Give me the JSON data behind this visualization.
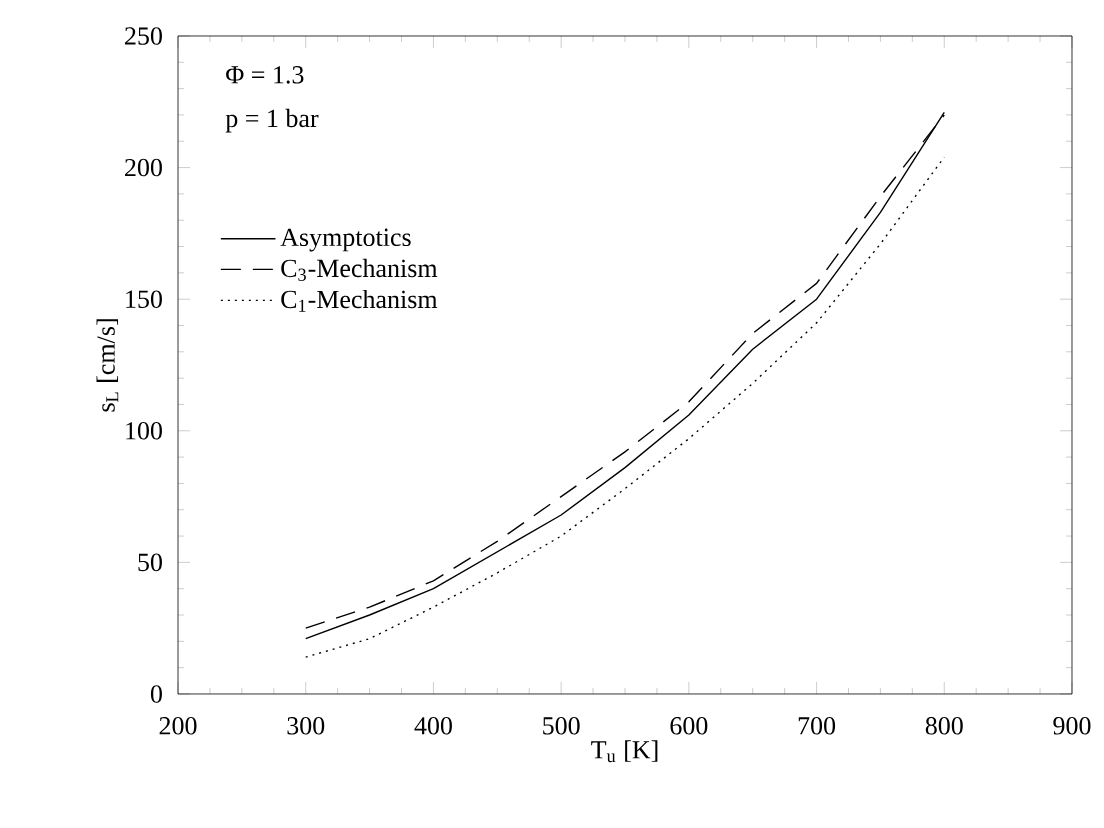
{
  "chart_data": {
    "type": "line",
    "xlabel": "T$_{u}$ [K]",
    "ylabel": "s$_{L}$ [cm/s]",
    "annotations": [
      "Φ = 1.3",
      "p = 1 bar"
    ],
    "x": [
      300,
      350,
      400,
      450,
      500,
      550,
      600,
      650,
      700,
      750,
      800
    ],
    "series": [
      {
        "name": "Asymptotics",
        "color": "#000000",
        "line_style": "solid",
        "values": [
          21,
          30,
          40,
          54,
          68,
          86,
          106,
          131,
          150,
          183,
          221
        ]
      },
      {
        "name": "C$_{3}$-Mechanism",
        "color": "#000000",
        "line_style": "dashed",
        "values": [
          25,
          33,
          43,
          58,
          75,
          92,
          111,
          137,
          156,
          189,
          220
        ]
      },
      {
        "name": "C$_{1}$-Mechanism",
        "color": "#000000",
        "line_style": "dotted",
        "values": [
          14,
          21,
          33,
          46,
          60,
          78,
          97,
          118,
          141,
          171,
          204
        ]
      }
    ],
    "xlim": [
      200,
      900
    ],
    "ylim": [
      0,
      250
    ],
    "xticks": [
      200,
      300,
      400,
      500,
      600,
      700,
      800,
      900
    ],
    "yticks": [
      0,
      50,
      100,
      150,
      200,
      250
    ],
    "legend": "top left",
    "grid": false,
    "marker": "none"
  }
}
